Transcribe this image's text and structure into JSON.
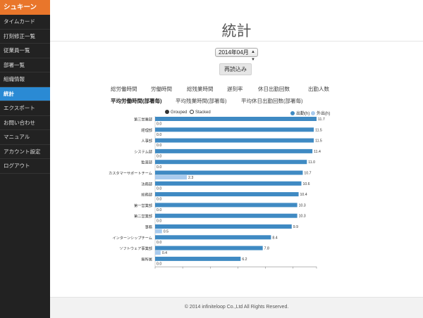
{
  "sidebar": {
    "brand": "シュキーン",
    "items": [
      {
        "label": "タイムカード",
        "active": false
      },
      {
        "label": "打刻修正一覧",
        "active": false
      },
      {
        "label": "従業員一覧",
        "active": false
      },
      {
        "label": "部署一覧",
        "active": false
      },
      {
        "label": "組織情報",
        "active": false
      },
      {
        "label": "統計",
        "active": true
      },
      {
        "label": "エクスポート",
        "active": false
      },
      {
        "label": "お問い合わせ",
        "active": false
      },
      {
        "label": "マニュアル",
        "active": false
      },
      {
        "label": "アカウント設定",
        "active": false
      },
      {
        "label": "ログアウト",
        "active": false
      }
    ]
  },
  "main": {
    "title": "統計",
    "month_select": "2014年04月",
    "reload_label": "再読込み",
    "tabs_row1": [
      "総労働時間",
      "労働時間",
      "総残業時間",
      "遅刻率",
      "休日出勤回数",
      "出勤人数"
    ],
    "tabs_row2": [
      "平均労働時間(部署毎)",
      "平均残業時間(部署毎)",
      "平均休日出勤回数(部署毎)"
    ],
    "active_tab": "平均労働時間(部署毎)"
  },
  "legend": {
    "grouped": "Grouped",
    "stacked": "Stacked",
    "series_a": "出勤(h)",
    "series_b": "外出(h)"
  },
  "colors": {
    "brand": "#e9762b",
    "sidebar_active": "#2a8ad4",
    "series_a": "#3f8ac3",
    "series_b": "#a9cbee"
  },
  "chart_data": {
    "type": "bar",
    "orientation": "horizontal",
    "mode": "grouped",
    "categories": [
      "第三営業部",
      "経理部",
      "人事部",
      "システム部",
      "監査部",
      "カスタマーサポートチーム",
      "法務部",
      "総務部",
      "第一営業部",
      "第二営業部",
      "事務",
      "インターンシップチーム",
      "ソフトウェア事業部",
      "無所属"
    ],
    "series": [
      {
        "name": "出勤(h)",
        "values": [
          11.7,
          11.5,
          11.5,
          11.4,
          11.0,
          10.7,
          10.6,
          10.4,
          10.3,
          10.3,
          9.9,
          8.4,
          7.8,
          6.2
        ]
      },
      {
        "name": "外出(h)",
        "values": [
          0.0,
          0.0,
          0.0,
          0.0,
          0.0,
          2.3,
          0.0,
          0.0,
          0.0,
          0.0,
          0.5,
          0.0,
          0.4,
          0.0
        ]
      }
    ],
    "x_ticks": [
      "0.0",
      "2.0",
      "4.0",
      "6.0",
      "8.0",
      "10.0",
      "11.7"
    ],
    "xlim": [
      0,
      11.7
    ],
    "legend_position": "top-right"
  },
  "footer": "© 2014 infiniteloop Co.,Ltd All Rights Reserved."
}
